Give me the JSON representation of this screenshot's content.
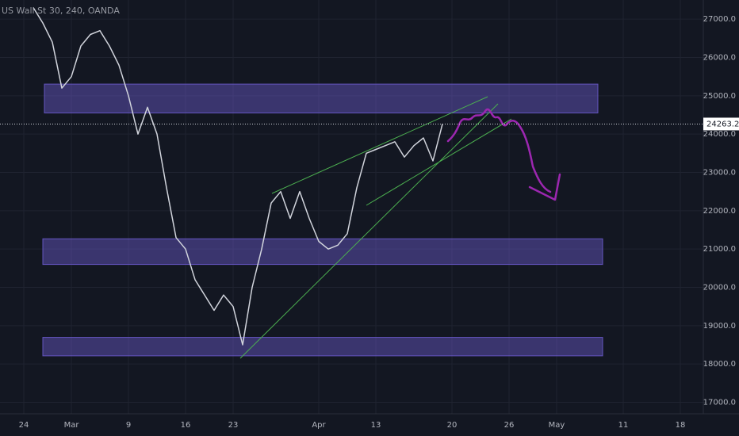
{
  "chart_data": {
    "type": "line",
    "title": "US Wall St 30, 240, OANDA",
    "categories": [
      null,
      null,
      "24",
      null,
      null,
      null,
      null,
      "Mar",
      null,
      null,
      null,
      null,
      null,
      "9",
      null,
      null,
      null,
      null,
      null,
      "16",
      null,
      null,
      null,
      null,
      "23",
      null,
      null,
      null,
      null,
      null,
      null,
      null,
      null,
      "Apr",
      null,
      null,
      null,
      null,
      null,
      "13",
      null,
      null,
      null,
      null,
      null,
      null,
      null,
      "20",
      null,
      null,
      null,
      null,
      null,
      "26",
      null,
      null,
      null,
      null,
      "May",
      null,
      null,
      null,
      null,
      null,
      null,
      "11",
      null,
      null,
      null,
      null,
      null,
      "18",
      null,
      null
    ],
    "values": [
      null,
      null,
      null,
      27300,
      26900,
      26400,
      25200,
      25500,
      26300,
      26600,
      26700,
      26300,
      25800,
      25000,
      24000,
      24700,
      24000,
      22600,
      21300,
      21000,
      20200,
      19800,
      19400,
      19800,
      19500,
      18500,
      20000,
      21000,
      22200,
      22500,
      21800,
      22500,
      21800,
      21200,
      21000,
      21100,
      21400,
      22600,
      23500,
      23600,
      23700,
      23800,
      23400,
      23700,
      23900,
      23300,
      24263.2,
      null,
      null,
      null,
      null,
      null,
      null,
      null,
      null,
      null,
      null,
      null,
      null,
      null,
      null,
      null,
      null,
      null,
      null,
      null,
      null,
      null,
      null,
      null,
      null,
      null,
      null,
      null
    ],
    "color": "#d1d4dc",
    "last_price": {
      "value": 24263.2,
      "label": "24263.2"
    },
    "zones": [
      [
        24552,
        25305
      ],
      [
        20598,
        21268
      ],
      [
        18213,
        18695
      ]
    ],
    "zone_color": "#6a5acd",
    "ylim": [
      16700,
      27500
    ],
    "yticks": [
      {
        "value": 17000,
        "label": "17000.0"
      },
      {
        "value": 18000,
        "label": "18000.0"
      },
      {
        "value": 19000,
        "label": "19000.0"
      },
      {
        "value": 20000,
        "label": "20000.0"
      },
      {
        "value": 21000,
        "label": "21000.0"
      },
      {
        "value": 22000,
        "label": "22000.0"
      },
      {
        "value": 23000,
        "label": "23000.0"
      },
      {
        "value": 24000,
        "label": "24000.0"
      },
      {
        "value": 25000,
        "label": "25000.0"
      },
      {
        "value": 26000,
        "label": "26000.0"
      },
      {
        "value": 27000,
        "label": "27000.0"
      }
    ],
    "grid": true
  }
}
